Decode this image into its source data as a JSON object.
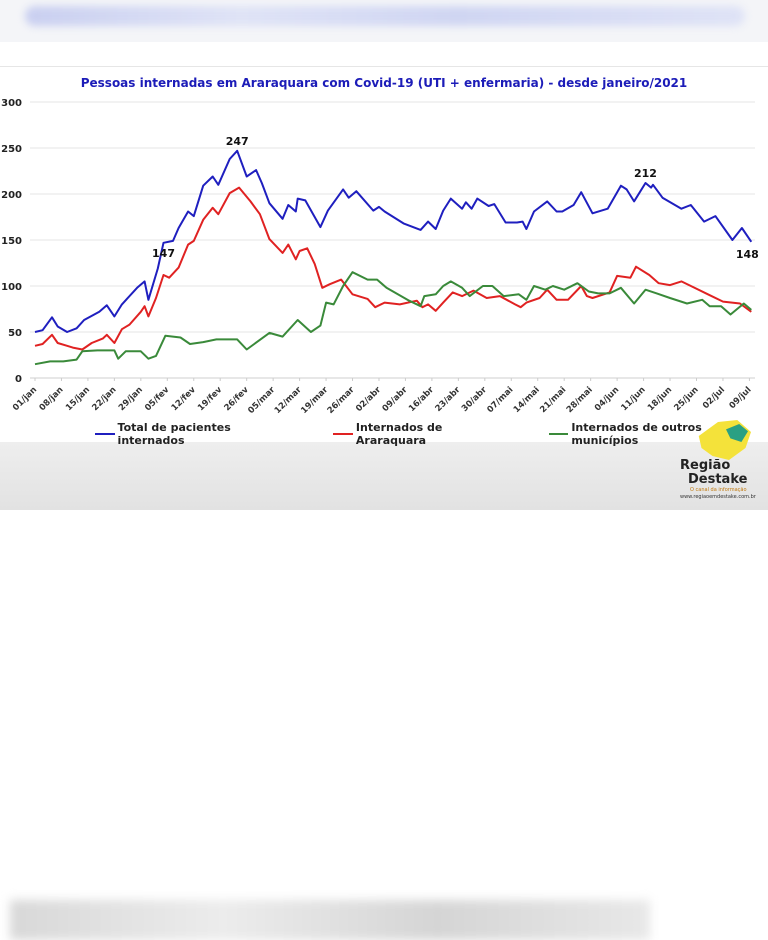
{
  "chart_data": {
    "type": "line",
    "title": "Pessoas internadas em Araraquara com Covid-19 (UTI + enfermaria) - desde janeiro/2021",
    "xlabel": "",
    "ylabel": "",
    "ylim": [
      0,
      300
    ],
    "yticks": [
      0,
      50,
      100,
      150,
      200,
      250,
      300
    ],
    "xlim_days": [
      0,
      190
    ],
    "xticks": [
      "01/jan",
      "08/jan",
      "15/jan",
      "22/jan",
      "29/jan",
      "05/fev",
      "12/fev",
      "19/fev",
      "26/fev",
      "05/mar",
      "12/mar",
      "19/mar",
      "26/mar",
      "02/abr",
      "09/abr",
      "16/abr",
      "23/abr",
      "30/abr",
      "07/mai",
      "14/mai",
      "21/mai",
      "28/mai",
      "04/jun",
      "11/jun",
      "18/jun",
      "25/jun",
      "02/jul",
      "09/jul"
    ],
    "grid": true,
    "legend_position": "bottom",
    "series": [
      {
        "name": "Total de pacientes internados",
        "color": "#1f1fbf",
        "points": [
          [
            0,
            50
          ],
          [
            2,
            52
          ],
          [
            4.5,
            66
          ],
          [
            6,
            56
          ],
          [
            8.5,
            50
          ],
          [
            11,
            54
          ],
          [
            13,
            63
          ],
          [
            17,
            72
          ],
          [
            19,
            79
          ],
          [
            21,
            67
          ],
          [
            23,
            80
          ],
          [
            27,
            98
          ],
          [
            29,
            105
          ],
          [
            30,
            85
          ],
          [
            32.5,
            119
          ],
          [
            34,
            147
          ],
          [
            36.5,
            149
          ],
          [
            38,
            163
          ],
          [
            40.5,
            181
          ],
          [
            42,
            176
          ],
          [
            44.5,
            209
          ],
          [
            47,
            219
          ],
          [
            48.5,
            210
          ],
          [
            51.5,
            238
          ],
          [
            53.5,
            247
          ],
          [
            56,
            219
          ],
          [
            58.5,
            226
          ],
          [
            60,
            212
          ],
          [
            62,
            190
          ],
          [
            65.5,
            173
          ],
          [
            67,
            188
          ],
          [
            69,
            181
          ],
          [
            69.5,
            195
          ],
          [
            71.5,
            193
          ],
          [
            75.5,
            164
          ],
          [
            77.5,
            182
          ],
          [
            81.5,
            205
          ],
          [
            83,
            196
          ],
          [
            85,
            203
          ],
          [
            89.5,
            182
          ],
          [
            91,
            186
          ],
          [
            92.5,
            181
          ],
          [
            97.5,
            168
          ],
          [
            102,
            161
          ],
          [
            104,
            170
          ],
          [
            106,
            162
          ],
          [
            108,
            182
          ],
          [
            110,
            195
          ],
          [
            113,
            184
          ],
          [
            114,
            191
          ],
          [
            115.5,
            184
          ],
          [
            117,
            195
          ],
          [
            120,
            187
          ],
          [
            121.5,
            189
          ],
          [
            124.5,
            169
          ],
          [
            127.5,
            169
          ],
          [
            129,
            170
          ],
          [
            130,
            162
          ],
          [
            132,
            181
          ],
          [
            135.5,
            192
          ],
          [
            138,
            181
          ],
          [
            139.5,
            181
          ],
          [
            142.5,
            188
          ],
          [
            144.5,
            202
          ],
          [
            147.5,
            179
          ],
          [
            151.5,
            184
          ],
          [
            155,
            209
          ],
          [
            156.5,
            205
          ],
          [
            158.5,
            192
          ],
          [
            161.5,
            212
          ],
          [
            163,
            207
          ],
          [
            163.5,
            210
          ],
          [
            166,
            196
          ],
          [
            171,
            184
          ],
          [
            173.5,
            188
          ],
          [
            177,
            170
          ],
          [
            180,
            176
          ],
          [
            184.5,
            150
          ],
          [
            187,
            163
          ],
          [
            189.5,
            148
          ]
        ]
      },
      {
        "name": "Internados de Araraquara",
        "color": "#e02222",
        "points": [
          [
            0,
            35
          ],
          [
            2,
            37
          ],
          [
            4.5,
            47
          ],
          [
            6,
            38
          ],
          [
            8.5,
            35
          ],
          [
            10,
            33
          ],
          [
            12.5,
            31
          ],
          [
            15,
            38
          ],
          [
            18,
            43
          ],
          [
            19,
            47
          ],
          [
            21,
            38
          ],
          [
            23,
            53
          ],
          [
            25,
            58
          ],
          [
            28,
            72
          ],
          [
            29,
            78
          ],
          [
            30,
            67
          ],
          [
            32,
            87
          ],
          [
            34,
            112
          ],
          [
            35.5,
            109
          ],
          [
            38,
            120
          ],
          [
            40.5,
            145
          ],
          [
            42,
            149
          ],
          [
            44.5,
            172
          ],
          [
            47,
            185
          ],
          [
            48.5,
            178
          ],
          [
            51.5,
            201
          ],
          [
            54,
            207
          ],
          [
            57,
            192
          ],
          [
            59.5,
            178
          ],
          [
            62,
            151
          ],
          [
            65.5,
            136
          ],
          [
            67,
            145
          ],
          [
            69,
            129
          ],
          [
            70,
            138
          ],
          [
            72,
            141
          ],
          [
            74,
            124
          ],
          [
            76,
            98
          ],
          [
            78,
            102
          ],
          [
            81,
            107
          ],
          [
            84,
            91
          ],
          [
            88,
            86
          ],
          [
            90,
            77
          ],
          [
            92.5,
            82
          ],
          [
            96.5,
            80
          ],
          [
            101,
            84
          ],
          [
            102.5,
            77
          ],
          [
            104,
            80
          ],
          [
            106,
            73
          ],
          [
            108,
            82
          ],
          [
            110.5,
            93
          ],
          [
            113,
            89
          ],
          [
            116,
            95
          ],
          [
            119.5,
            87
          ],
          [
            123,
            89
          ],
          [
            127,
            80
          ],
          [
            128.5,
            77
          ],
          [
            130,
            82
          ],
          [
            133.5,
            87
          ],
          [
            135.5,
            96
          ],
          [
            138,
            85
          ],
          [
            141,
            85
          ],
          [
            144.5,
            100
          ],
          [
            146,
            89
          ],
          [
            147.5,
            87
          ],
          [
            152,
            93
          ],
          [
            154,
            111
          ],
          [
            157.5,
            109
          ],
          [
            159,
            121
          ],
          [
            162.5,
            112
          ],
          [
            165,
            103
          ],
          [
            168,
            101
          ],
          [
            171,
            105
          ],
          [
            174,
            99
          ],
          [
            178.5,
            90
          ],
          [
            182,
            83
          ],
          [
            186.5,
            81
          ],
          [
            189.5,
            72
          ]
        ]
      },
      {
        "name": "Internados de outros municípios",
        "color": "#3a8a3a",
        "points": [
          [
            0,
            15
          ],
          [
            4,
            18
          ],
          [
            7.5,
            18
          ],
          [
            11,
            20
          ],
          [
            12.5,
            29
          ],
          [
            16.5,
            30
          ],
          [
            21,
            30
          ],
          [
            22,
            21
          ],
          [
            24,
            29
          ],
          [
            28,
            29
          ],
          [
            30,
            21
          ],
          [
            32,
            24
          ],
          [
            34.5,
            46
          ],
          [
            38.5,
            44
          ],
          [
            41,
            37
          ],
          [
            44.5,
            39
          ],
          [
            48,
            42
          ],
          [
            53.5,
            42
          ],
          [
            56,
            31
          ],
          [
            62,
            49
          ],
          [
            65.5,
            45
          ],
          [
            69.5,
            63
          ],
          [
            73,
            50
          ],
          [
            75.5,
            57
          ],
          [
            77,
            82
          ],
          [
            79,
            80
          ],
          [
            81.5,
            100
          ],
          [
            84,
            115
          ],
          [
            88,
            107
          ],
          [
            90.5,
            107
          ],
          [
            93,
            98
          ],
          [
            99,
            84
          ],
          [
            102,
            78
          ],
          [
            103,
            89
          ],
          [
            106,
            91
          ],
          [
            108,
            100
          ],
          [
            110,
            105
          ],
          [
            113,
            98
          ],
          [
            115,
            89
          ],
          [
            118.5,
            100
          ],
          [
            121,
            100
          ],
          [
            124,
            89
          ],
          [
            128,
            91
          ],
          [
            130,
            85
          ],
          [
            132,
            100
          ],
          [
            135,
            96
          ],
          [
            137,
            100
          ],
          [
            140,
            96
          ],
          [
            143.5,
            103
          ],
          [
            146.5,
            94
          ],
          [
            149,
            92
          ],
          [
            152,
            92
          ],
          [
            155,
            98
          ],
          [
            158.5,
            81
          ],
          [
            161.5,
            96
          ],
          [
            164.5,
            92
          ],
          [
            168,
            87
          ],
          [
            172.5,
            81
          ],
          [
            176.5,
            85
          ],
          [
            178.5,
            78
          ],
          [
            181.5,
            78
          ],
          [
            184,
            69
          ],
          [
            187.5,
            81
          ],
          [
            189.5,
            74
          ]
        ]
      }
    ],
    "annotations": [
      {
        "series": 0,
        "x": 34,
        "y": 147,
        "text": "147"
      },
      {
        "series": 0,
        "x": 53.5,
        "y": 247,
        "text": "247"
      },
      {
        "series": 0,
        "x": 161.5,
        "y": 212,
        "text": "212"
      },
      {
        "series": 0,
        "x": 189.5,
        "y": 148,
        "text": "148"
      }
    ]
  },
  "logo": {
    "line1": "Região",
    "line2": "Destake",
    "tagline": "O canal da informação",
    "url": "www.regiaoemdestake.com.br"
  }
}
